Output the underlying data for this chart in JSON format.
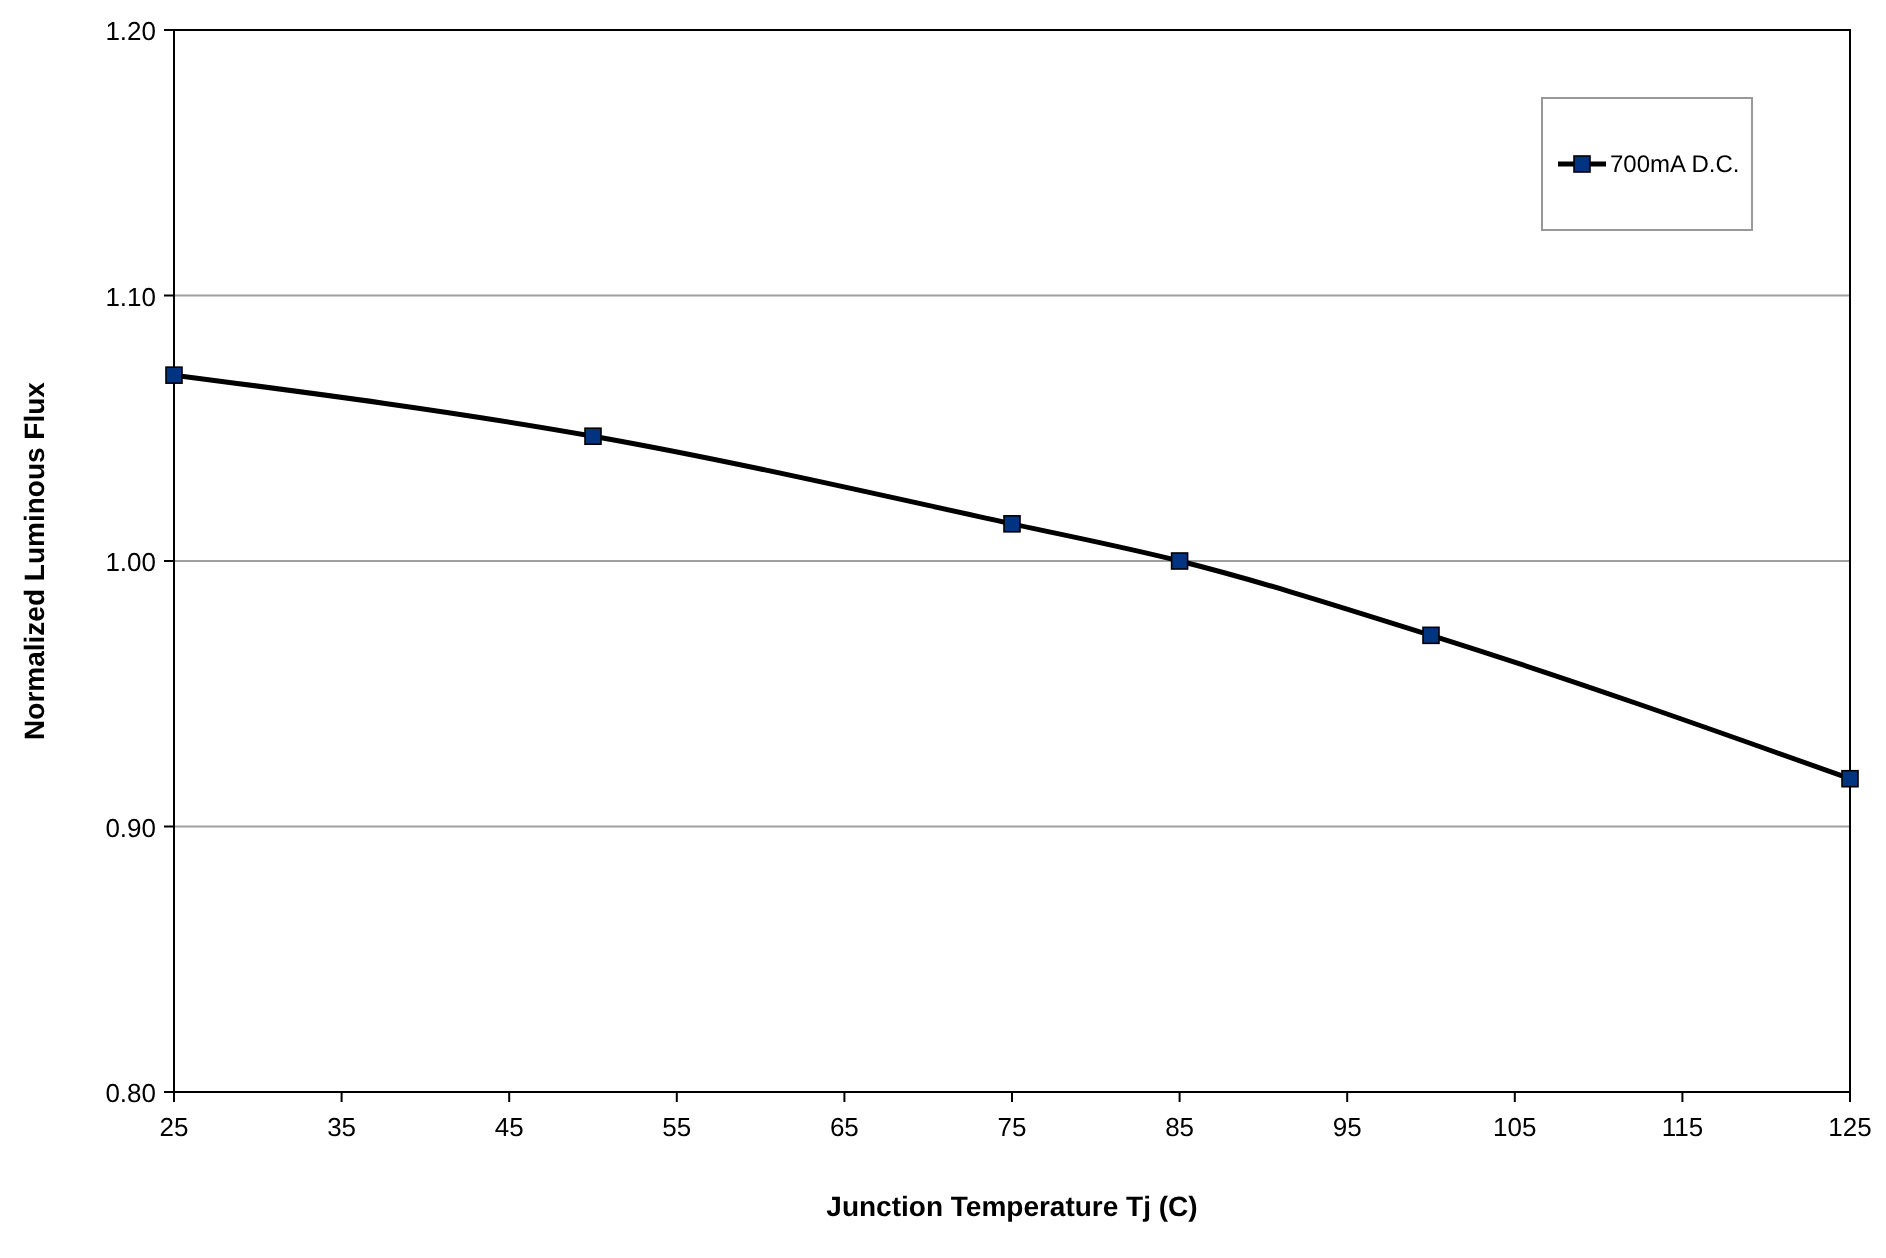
{
  "chart_data": {
    "type": "line",
    "xlabel": "Junction Temperature Tj (C)",
    "ylabel": "Normalized Luminous Flux",
    "x": [
      25,
      50,
      75,
      85,
      100,
      125
    ],
    "series": [
      {
        "name": "700mA D.C.",
        "color": "#000000",
        "values": [
          1.07,
          1.047,
          1.014,
          1.0,
          0.972,
          0.918
        ]
      }
    ],
    "xlim": [
      25,
      125
    ],
    "xticks": [
      25,
      35,
      45,
      55,
      65,
      75,
      85,
      95,
      105,
      115,
      125
    ],
    "ylim": [
      0.8,
      1.2
    ],
    "yticks": [
      {
        "value": 0.8,
        "label": "0.80"
      },
      {
        "value": 0.9,
        "label": "0.90"
      },
      {
        "value": 1.0,
        "label": "1.00"
      },
      {
        "value": 1.1,
        "label": "1.10"
      },
      {
        "value": 1.2,
        "label": "1.20"
      }
    ],
    "grid": "y",
    "legend": "top right",
    "marker": "square",
    "line_style": "solid"
  }
}
